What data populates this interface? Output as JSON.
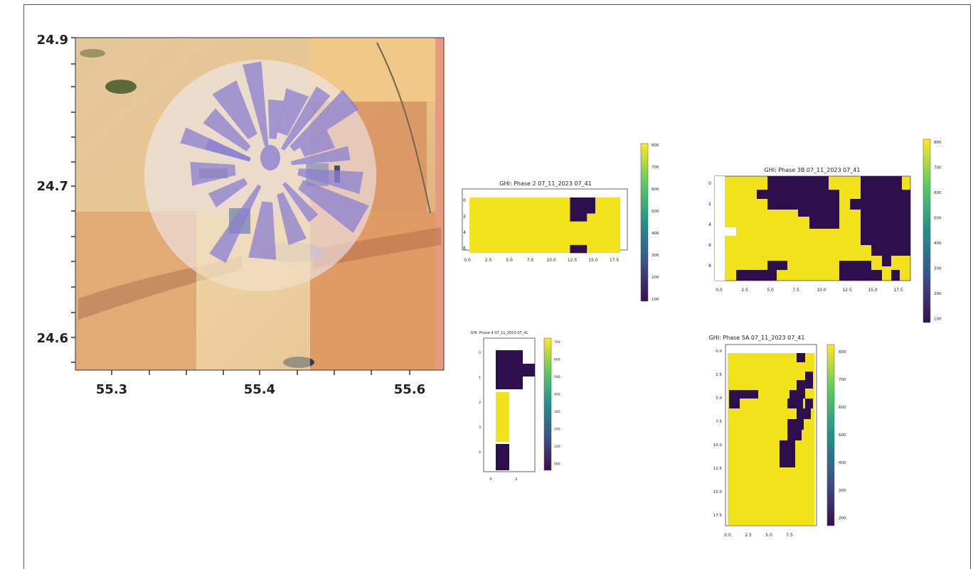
{
  "chart_data": [
    {
      "type": "map",
      "x_ticks": [
        "55.3",
        "55.4",
        "55.6"
      ],
      "y_ticks": [
        "24.9",
        "24.7",
        "24.6"
      ],
      "colors": {
        "sand": "#e9c58c",
        "desert_red": "#d98a5a",
        "overlay": "#eeeaf0",
        "swath": "#8b7fd0"
      }
    },
    {
      "type": "heatmap",
      "title": "GHI: Phase 2 07_11_2023 07_41",
      "x_ticks": [
        "0.0",
        "2.5",
        "5.0",
        "7.5",
        "10.0",
        "12.5",
        "15.0",
        "17.5"
      ],
      "y_ticks": [
        "0",
        "2",
        "4",
        "6"
      ],
      "colorbar_ticks": [
        "800",
        "700",
        "600",
        "500",
        "400",
        "300",
        "200",
        "100"
      ],
      "grid_size": [
        18,
        7
      ],
      "low_cells": [
        [
          12,
          0
        ],
        [
          13,
          0
        ],
        [
          14,
          0
        ],
        [
          12,
          1
        ],
        [
          13,
          1
        ],
        [
          14,
          1
        ],
        [
          12,
          2
        ],
        [
          13,
          2
        ],
        [
          12,
          6
        ],
        [
          13,
          6
        ]
      ]
    },
    {
      "type": "heatmap",
      "title": "GHI: Phase 3B 07_11_2023 07_41",
      "x_ticks": [
        "0.0",
        "2.5",
        "5.0",
        "7.5",
        "10.0",
        "12.5",
        "15.0",
        "17.5"
      ],
      "y_ticks": [
        "0",
        "2",
        "4",
        "6",
        "8"
      ],
      "colorbar_ticks": [
        "800",
        "700",
        "600",
        "500",
        "400",
        "300",
        "200",
        "100"
      ]
    },
    {
      "type": "heatmap",
      "title": "GHI: Phase 4 07_11_2023 07_41",
      "x_ticks": [
        "0",
        "1"
      ],
      "y_ticks": [
        "0",
        "1",
        "2",
        "3",
        "4"
      ],
      "colorbar_ticks": [
        "700",
        "600",
        "500",
        "400",
        "300",
        "200",
        "100",
        "000"
      ]
    },
    {
      "type": "heatmap",
      "title": "GHI: Phase 5A 07_11_2023 07_41",
      "x_ticks": [
        "0.0",
        "2.5",
        "5.0",
        "7.5"
      ],
      "y_ticks": [
        "0.0",
        "2.5",
        "5.0",
        "7.5",
        "10.0",
        "12.5",
        "15.0",
        "17.5"
      ],
      "colorbar_ticks": [
        "800",
        "700",
        "600",
        "500",
        "400",
        "300",
        "200"
      ]
    }
  ],
  "colors": {
    "high": "#f2e21c",
    "low": "#2d0f4d",
    "frame": "#555555"
  }
}
